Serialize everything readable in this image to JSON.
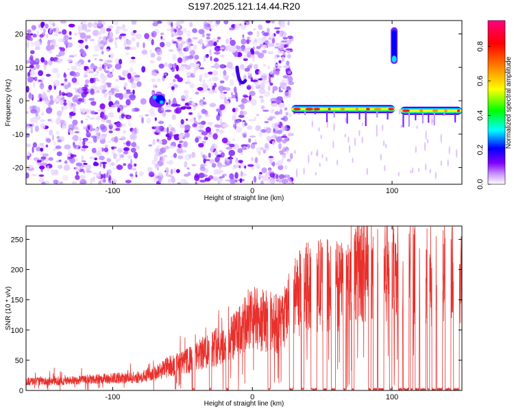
{
  "title": "S197.2025.121.14.44.R20",
  "chart_data": [
    {
      "type": "heatmap",
      "name": "spectrogram",
      "xlabel": "Height of straight line (km)",
      "ylabel": "Frequency (Hz)",
      "xlim": [
        -162,
        150
      ],
      "ylim": [
        -25,
        24
      ],
      "xticks": [
        -100,
        0,
        100
      ],
      "xtick_labels": [
        "-100",
        "0",
        "100"
      ],
      "yticks": [
        20,
        10,
        0,
        -10,
        -20
      ],
      "ytick_labels": [
        "20",
        "10",
        "0",
        "-10",
        "-20"
      ],
      "colorbar": {
        "label": "Normalized spectral amplitude",
        "range": [
          0.0,
          0.95
        ],
        "ticks": [
          0.0,
          0.2,
          0.4,
          0.6,
          0.8
        ],
        "tick_labels": [
          "0.0",
          "0.2",
          "0.4",
          "0.6",
          "0.8"
        ],
        "colors": [
          "#ffffff",
          "#cc99ff",
          "#8000ff",
          "#0000ff",
          "#00ffff",
          "#00ff00",
          "#ffff00",
          "#ff8000",
          "#ff0000",
          "#ff0080"
        ]
      },
      "features": [
        {
          "label": "main line segment 1",
          "x_range": [
            28,
            102
          ],
          "freq": -2.5,
          "peak_amplitude": 0.95
        },
        {
          "label": "main line segment 2",
          "x_range": [
            106,
            150
          ],
          "freq": -3.0,
          "peak_amplitude": 0.9
        },
        {
          "label": "upper blob",
          "x_center": 101.5,
          "freq_range": [
            11,
            22
          ],
          "peak_amplitude": 0.5
        },
        {
          "label": "noise patch",
          "x_center": -68,
          "freq": 0,
          "peak_amplitude": 0.4
        },
        {
          "label": "noise curve",
          "x_center": -8,
          "freq_range": [
            5,
            10
          ],
          "peak_amplitude": 0.3
        }
      ]
    },
    {
      "type": "line",
      "name": "snr",
      "xlabel": "Height of straight line (km)",
      "ylabel": "SNR (10 * v/v)",
      "xlim": [
        -162,
        150
      ],
      "ylim": [
        0,
        272
      ],
      "xticks": [
        -100,
        0,
        100
      ],
      "xtick_labels": [
        "-100",
        "0",
        "100"
      ],
      "yticks": [
        0,
        50,
        100,
        150,
        200,
        250
      ],
      "ytick_labels": [
        "0",
        "50",
        "100",
        "150",
        "200",
        "250"
      ],
      "series": [
        {
          "name": "SNR",
          "color": "#e8302c",
          "envelope_x": [
            -162,
            -140,
            -120,
            -100,
            -80,
            -70,
            -60,
            -50,
            -40,
            -30,
            -20,
            -10,
            0,
            10,
            20,
            30,
            40,
            50,
            60,
            70,
            80,
            90,
            100,
            110,
            120,
            130,
            140,
            150
          ],
          "envelope_upper": [
            40,
            38,
            42,
            45,
            50,
            60,
            85,
            95,
            110,
            140,
            130,
            170,
            190,
            175,
            150,
            205,
            230,
            215,
            195,
            220,
            240,
            270,
            245,
            235,
            230,
            225,
            235,
            240
          ],
          "envelope_typical": [
            15,
            15,
            18,
            20,
            22,
            28,
            40,
            45,
            55,
            70,
            75,
            95,
            120,
            115,
            110,
            150,
            175,
            175,
            170,
            190,
            205,
            210,
            200,
            195,
            195,
            190,
            195,
            200
          ],
          "dropouts_x": [
            -55,
            -42,
            -30,
            -18,
            -8,
            12,
            28,
            36,
            44,
            52,
            58,
            66,
            72,
            84,
            88,
            92,
            99,
            106,
            110,
            114,
            118,
            122,
            126,
            130,
            134,
            140,
            146
          ]
        }
      ]
    }
  ]
}
